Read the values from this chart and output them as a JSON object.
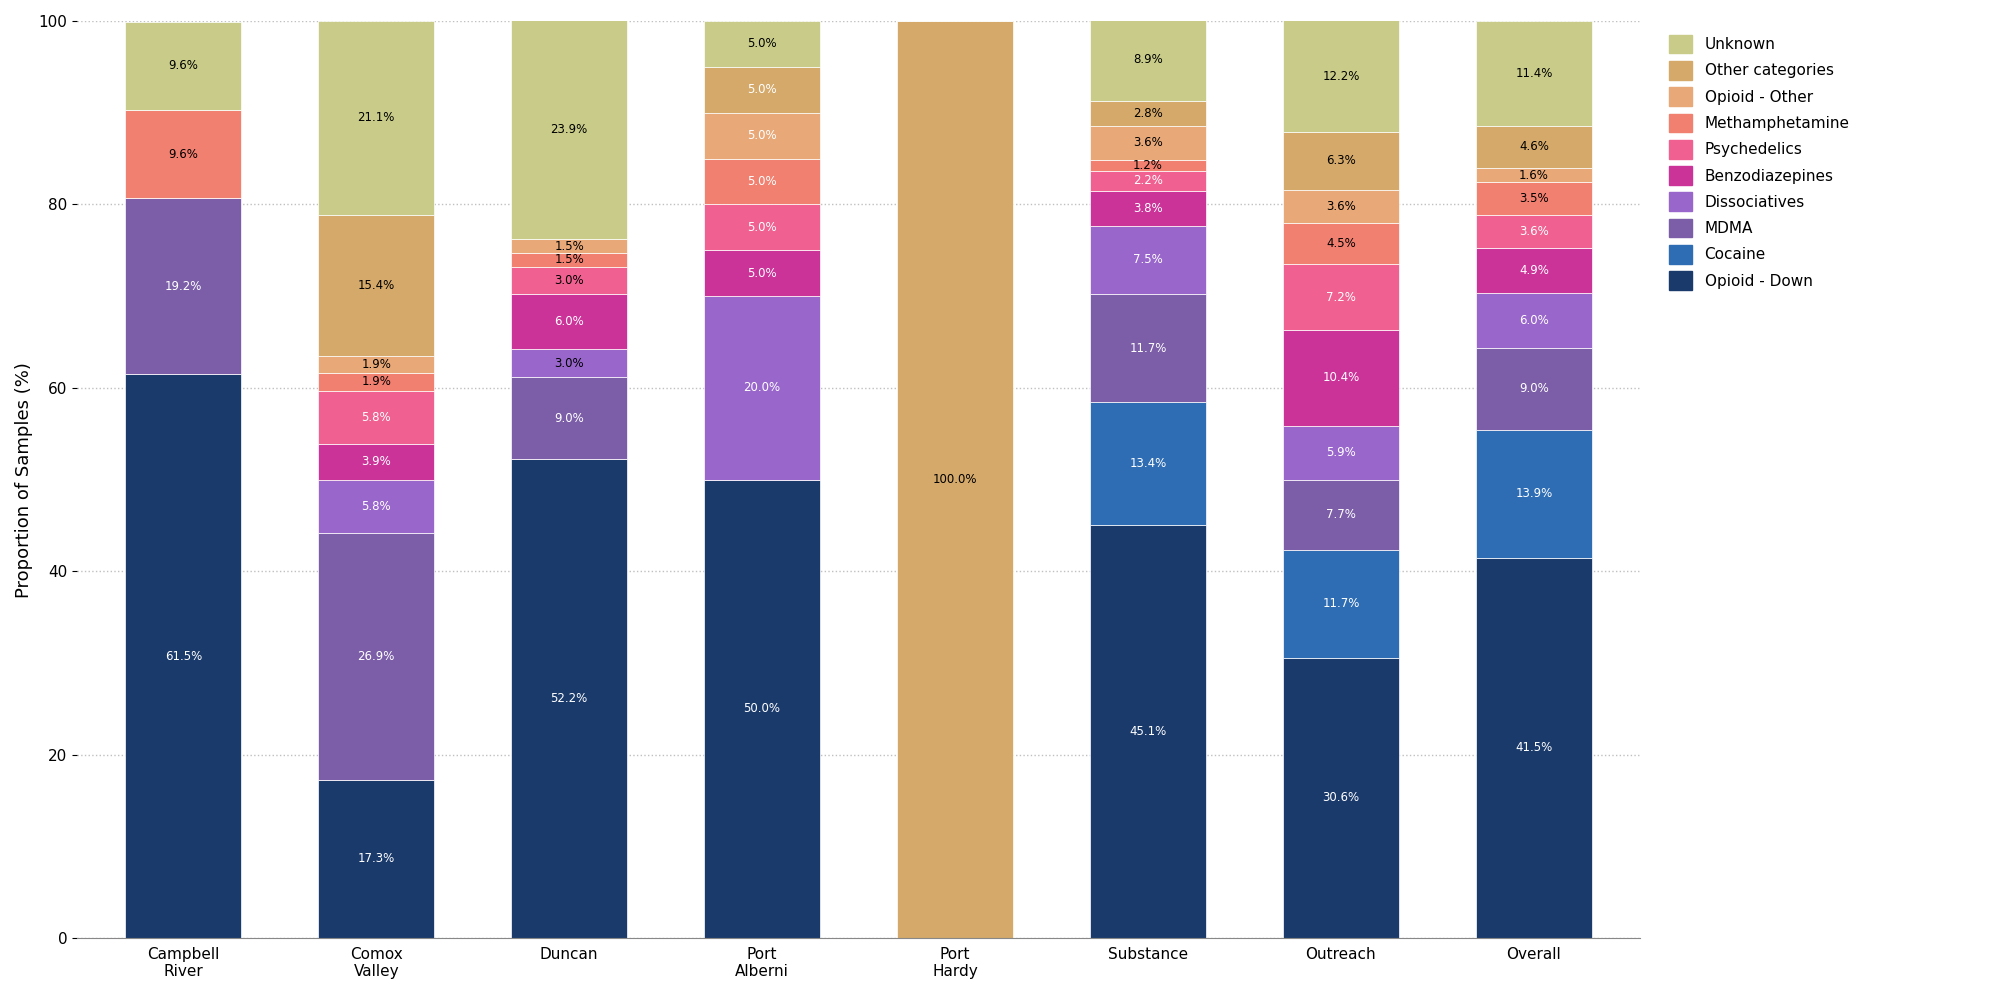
{
  "categories": [
    "Campbell\nRiver",
    "Comox\nValley",
    "Duncan",
    "Port\nAlberni",
    "Port\nHardy",
    "Substance",
    "Outreach",
    "Overall"
  ],
  "drug_classes": [
    "Opioid - Down",
    "Cocaine",
    "MDMA",
    "Dissociatives",
    "Benzodiazepines",
    "Psychedelics",
    "Methamphetamine",
    "Opioid - Other",
    "Other categories",
    "Unknown"
  ],
  "colors": [
    "#1a3a6b",
    "#2e6db4",
    "#7b5ea7",
    "#9966cc",
    "#cc3399",
    "#f06090",
    "#f28070",
    "#e8a878",
    "#d4a96a",
    "#c8cc88"
  ],
  "values": {
    "Campbell\nRiver": [
      61.5,
      0.0,
      19.2,
      0.0,
      0.0,
      0.0,
      9.6,
      0.0,
      0.0,
      9.6
    ],
    "Comox\nValley": [
      17.3,
      0.0,
      26.9,
      5.8,
      3.9,
      5.8,
      1.9,
      1.9,
      15.4,
      21.1
    ],
    "Duncan": [
      52.2,
      0.0,
      9.0,
      3.0,
      6.0,
      3.0,
      1.5,
      1.5,
      0.0,
      23.9
    ],
    "Port\nAlberni": [
      50.0,
      0.0,
      0.0,
      20.0,
      5.0,
      5.0,
      5.0,
      5.0,
      5.0,
      5.0
    ],
    "Port\nHardy": [
      0.0,
      0.0,
      0.0,
      0.0,
      0.0,
      0.0,
      0.0,
      0.0,
      100.0,
      0.0
    ],
    "Substance": [
      45.1,
      13.4,
      11.7,
      7.5,
      3.8,
      2.2,
      1.2,
      3.6,
      2.8,
      8.9
    ],
    "Outreach": [
      30.6,
      11.7,
      7.7,
      5.9,
      10.4,
      7.2,
      4.5,
      3.6,
      6.3,
      12.2
    ],
    "Overall": [
      41.5,
      13.9,
      9.0,
      6.0,
      4.9,
      3.6,
      3.5,
      1.6,
      4.6,
      11.4
    ]
  },
  "text_colors": {
    "Campbell\nRiver": [
      "white",
      "white",
      "white",
      "white",
      "white",
      "white",
      "black",
      "white",
      "black",
      "black"
    ],
    "Comox\nValley": [
      "white",
      "white",
      "white",
      "white",
      "white",
      "white",
      "black",
      "black",
      "black",
      "black"
    ],
    "Duncan": [
      "white",
      "white",
      "white",
      "black",
      "white",
      "black",
      "black",
      "black",
      "black",
      "black"
    ],
    "Port\nAlberni": [
      "white",
      "white",
      "white",
      "white",
      "white",
      "white",
      "white",
      "white",
      "white",
      "black"
    ],
    "Port\nHardy": [
      "white",
      "white",
      "white",
      "white",
      "white",
      "white",
      "white",
      "white",
      "black",
      "black"
    ],
    "Substance": [
      "white",
      "white",
      "white",
      "white",
      "white",
      "white",
      "black",
      "black",
      "black",
      "black"
    ],
    "Outreach": [
      "white",
      "white",
      "white",
      "white",
      "white",
      "white",
      "black",
      "black",
      "black",
      "black"
    ],
    "Overall": [
      "white",
      "white",
      "white",
      "white",
      "white",
      "white",
      "black",
      "black",
      "black",
      "black"
    ]
  },
  "ylabel": "Proportion of Samples (%)",
  "ylim": [
    0,
    100
  ],
  "min_pct_label": 1.0,
  "background_color": "#ffffff",
  "grid_color": "#c0c0c0",
  "bar_width": 0.6,
  "legend_fontsize": 11,
  "tick_fontsize": 11,
  "ylabel_fontsize": 13
}
